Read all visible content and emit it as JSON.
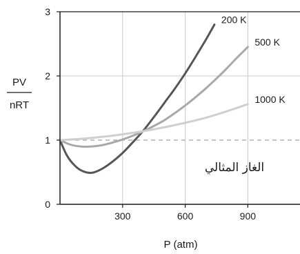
{
  "chart_data": {
    "type": "line",
    "title": "",
    "xlabel": "P (atm)",
    "ylabel_numerator": "PV",
    "ylabel_denominator": "nRT",
    "xlim": [
      0,
      1150
    ],
    "ylim": [
      0,
      3
    ],
    "x_ticks": [
      300,
      600,
      900
    ],
    "y_ticks": [
      0,
      1,
      2,
      3
    ],
    "grid": true,
    "reference_line": {
      "y": 1,
      "style": "dashed",
      "label": "الغاز المثالي"
    },
    "series": [
      {
        "name": "200 K",
        "color": "#555555",
        "x": [
          0,
          30,
          60,
          100,
          150,
          200,
          250,
          300,
          350,
          400,
          450,
          500,
          550,
          600,
          650,
          700,
          740
        ],
        "y": [
          1.0,
          0.78,
          0.64,
          0.53,
          0.49,
          0.55,
          0.66,
          0.8,
          0.97,
          1.15,
          1.36,
          1.58,
          1.8,
          2.04,
          2.3,
          2.57,
          2.8
        ]
      },
      {
        "name": "500 K",
        "color": "#a8a8a8",
        "x": [
          0,
          50,
          100,
          150,
          200,
          250,
          300,
          350,
          400,
          450,
          500,
          550,
          600,
          650,
          700,
          750,
          800,
          850,
          900
        ],
        "y": [
          1.0,
          0.93,
          0.9,
          0.9,
          0.92,
          0.96,
          1.01,
          1.07,
          1.14,
          1.22,
          1.31,
          1.42,
          1.54,
          1.67,
          1.81,
          1.96,
          2.12,
          2.29,
          2.45
        ]
      },
      {
        "name": "1000 K",
        "color": "#cfcfcf",
        "x": [
          0,
          100,
          200,
          300,
          400,
          500,
          600,
          700,
          800,
          900
        ],
        "y": [
          1.0,
          1.02,
          1.05,
          1.09,
          1.14,
          1.2,
          1.27,
          1.35,
          1.45,
          1.56
        ]
      }
    ],
    "series_label_anchor_x": [
      740,
      900,
      900
    ],
    "series_label_anchor_y": [
      2.8,
      2.45,
      1.56
    ]
  }
}
